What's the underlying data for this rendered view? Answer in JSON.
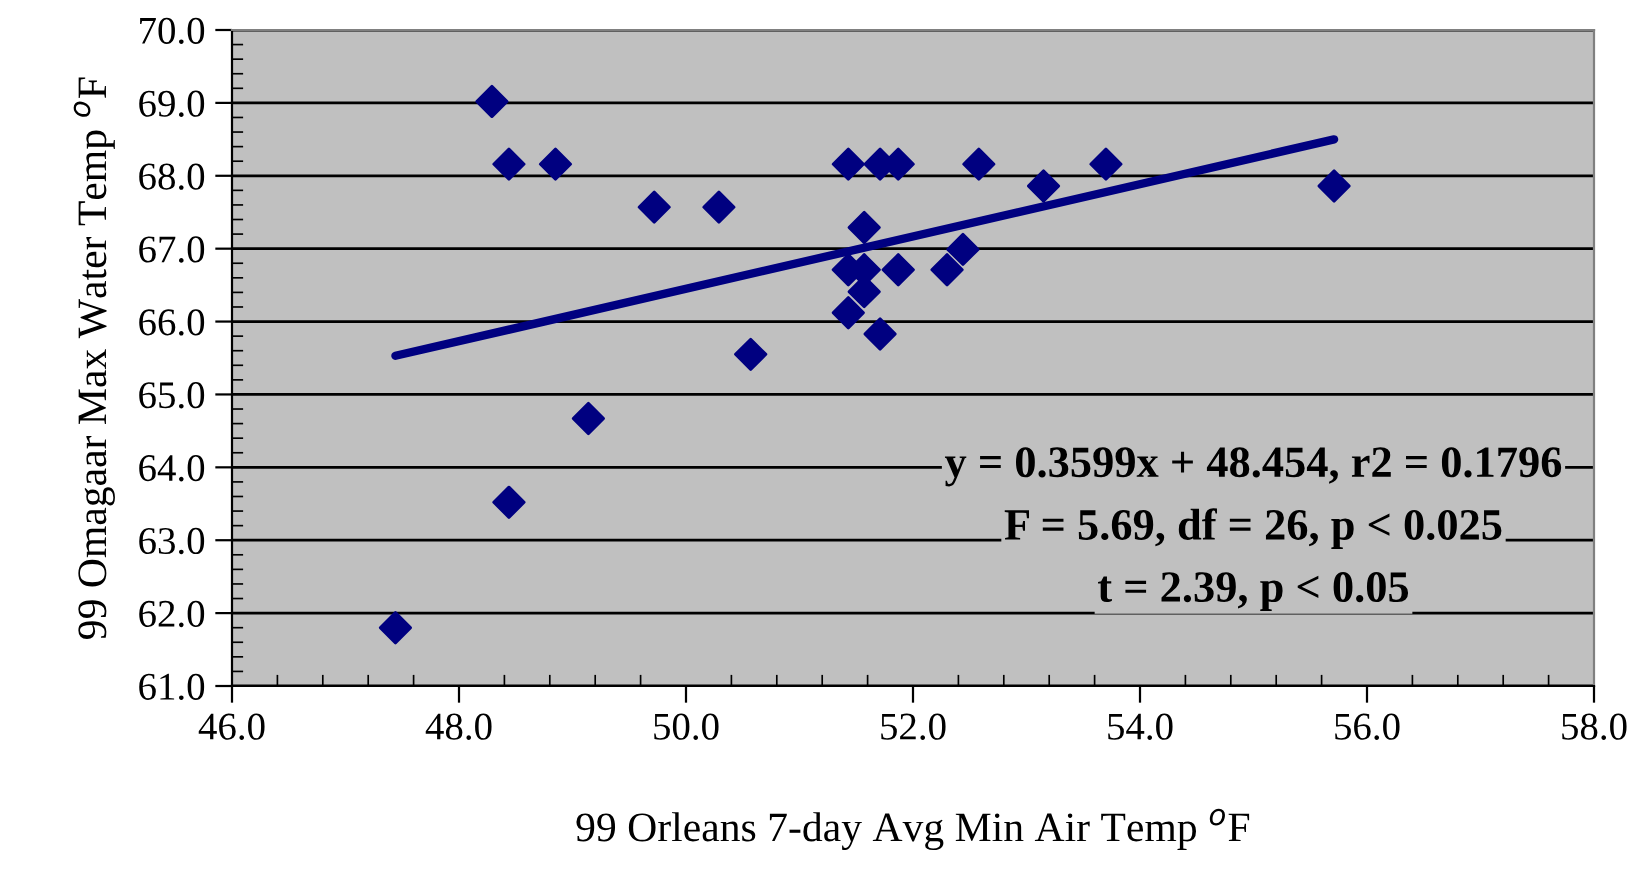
{
  "chart_data": {
    "type": "scatter",
    "xlabel": "99 Orleans 7-day Avg Min Air Temp $^{o}$F",
    "ylabel": "99 Omagaar Max Water Temp $^{o}$F",
    "series": [
      {
        "color": "#000080",
        "marker": "diamond",
        "x": [
          47.44,
          48.29,
          48.44,
          48.85,
          48.44,
          49.14,
          49.72,
          50.29,
          50.57,
          51.43,
          51.71,
          51.87,
          51.57,
          51.43,
          51.57,
          51.87,
          51.57,
          51.43,
          51.71,
          52.58,
          53.15,
          53.7,
          55.71,
          52.3,
          52.44
        ],
        "values": [
          61.8,
          69.02,
          68.16,
          68.16,
          63.52,
          64.67,
          67.57,
          67.57,
          65.55,
          68.16,
          68.16,
          68.16,
          67.29,
          66.71,
          66.71,
          66.71,
          66.41,
          66.12,
          65.83,
          68.16,
          67.86,
          68.16,
          67.86,
          66.71,
          66.99
        ]
      },
      {
        "type": "line",
        "color": "#000080",
        "marker": "none",
        "line_style": "solid",
        "x": [
          47.44,
          55.71
        ],
        "values": [
          65.53,
          68.5
        ]
      }
    ],
    "xlim": [
      46,
      58
    ],
    "xticks": [
      {
        "value": 46,
        "label": "46.0"
      },
      {
        "value": 48,
        "label": "48.0"
      },
      {
        "value": 50,
        "label": "50.0"
      },
      {
        "value": 52,
        "label": "52.0"
      },
      {
        "value": 54,
        "label": "54.0"
      },
      {
        "value": 56,
        "label": "56.0"
      },
      {
        "value": 58,
        "label": "58.0"
      }
    ],
    "ylim": [
      61,
      70
    ],
    "yticks": [
      {
        "value": 61,
        "label": "61.0"
      },
      {
        "value": 62,
        "label": "62.0"
      },
      {
        "value": 63,
        "label": "63.0"
      },
      {
        "value": 64,
        "label": "64.0"
      },
      {
        "value": 65,
        "label": "65.0"
      },
      {
        "value": 66,
        "label": "66.0"
      },
      {
        "value": 67,
        "label": "67.0"
      },
      {
        "value": 68,
        "label": "68.0"
      },
      {
        "value": 69,
        "label": "69.0"
      },
      {
        "value": 70,
        "label": "70.0"
      }
    ],
    "grid": "y",
    "legend": false,
    "annotations": [
      "y = 0.3599x + 48.454, r2 = 0.1796",
      "F = 5.69, df = 26, p < 0.025",
      "t = 2.39, p < 0.05"
    ]
  }
}
